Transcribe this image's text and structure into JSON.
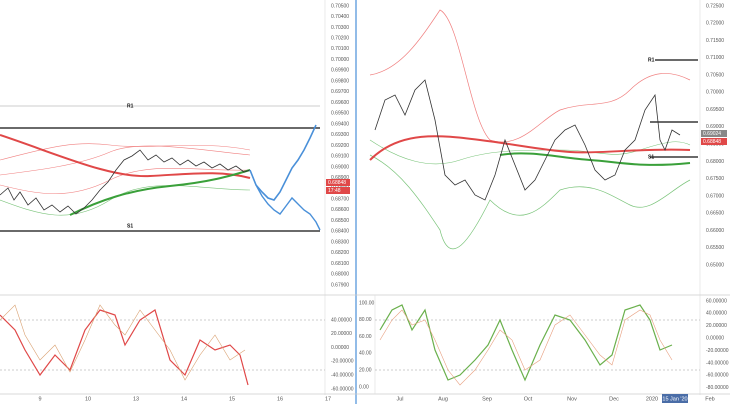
{
  "left_chart": {
    "price_axis": [
      "0.70500",
      "0.70400",
      "0.70300",
      "0.70200",
      "0.70100",
      "0.70000",
      "0.69900",
      "0.69800",
      "0.69700",
      "0.69600",
      "0.69500",
      "0.69400",
      "0.69300",
      "0.69200",
      "0.69100",
      "0.69000",
      "0.68900",
      "0.68800",
      "0.68700",
      "0.68600",
      "0.68500",
      "0.68400",
      "0.68300",
      "0.68200",
      "0.68100",
      "0.68000",
      "0.67900"
    ],
    "osc_axis": [
      "40.00000",
      "20.00000",
      "0.00000",
      "-20.00000",
      "-40.00000",
      "-60.00000"
    ],
    "dates": [
      "9",
      "10",
      "13",
      "14",
      "15",
      "16",
      "17"
    ],
    "price_tag": "0.68848",
    "time_tag": "17:48",
    "levels": [
      "R1",
      "S1"
    ]
  },
  "right_chart": {
    "price_axis": [
      "0.72500",
      "0.72000",
      "0.71500",
      "0.71000",
      "0.70500",
      "0.70000",
      "0.69500",
      "0.69000",
      "0.68500",
      "0.68000",
      "0.67500",
      "0.67000",
      "0.66500",
      "0.66000",
      "0.65500",
      "0.65000"
    ],
    "osc_axis_right": [
      "60.00000",
      "40.00000",
      "20.00000",
      "0.00000",
      "-20.00000",
      "-40.00000",
      "-60.00000",
      "-80.00000"
    ],
    "osc_axis_left": [
      "100.00",
      "80.00",
      "60.00",
      "40.00",
      "20.00",
      "0.00"
    ],
    "dates": [
      "Jul",
      "Aug",
      "Sep",
      "Oct",
      "Nov",
      "Dec",
      "2020",
      "Feb"
    ],
    "cursor_date": "15 Jan '20",
    "price_tags": [
      "0.69024",
      "0.68848"
    ],
    "levels": [
      "R1",
      "S1"
    ]
  }
}
